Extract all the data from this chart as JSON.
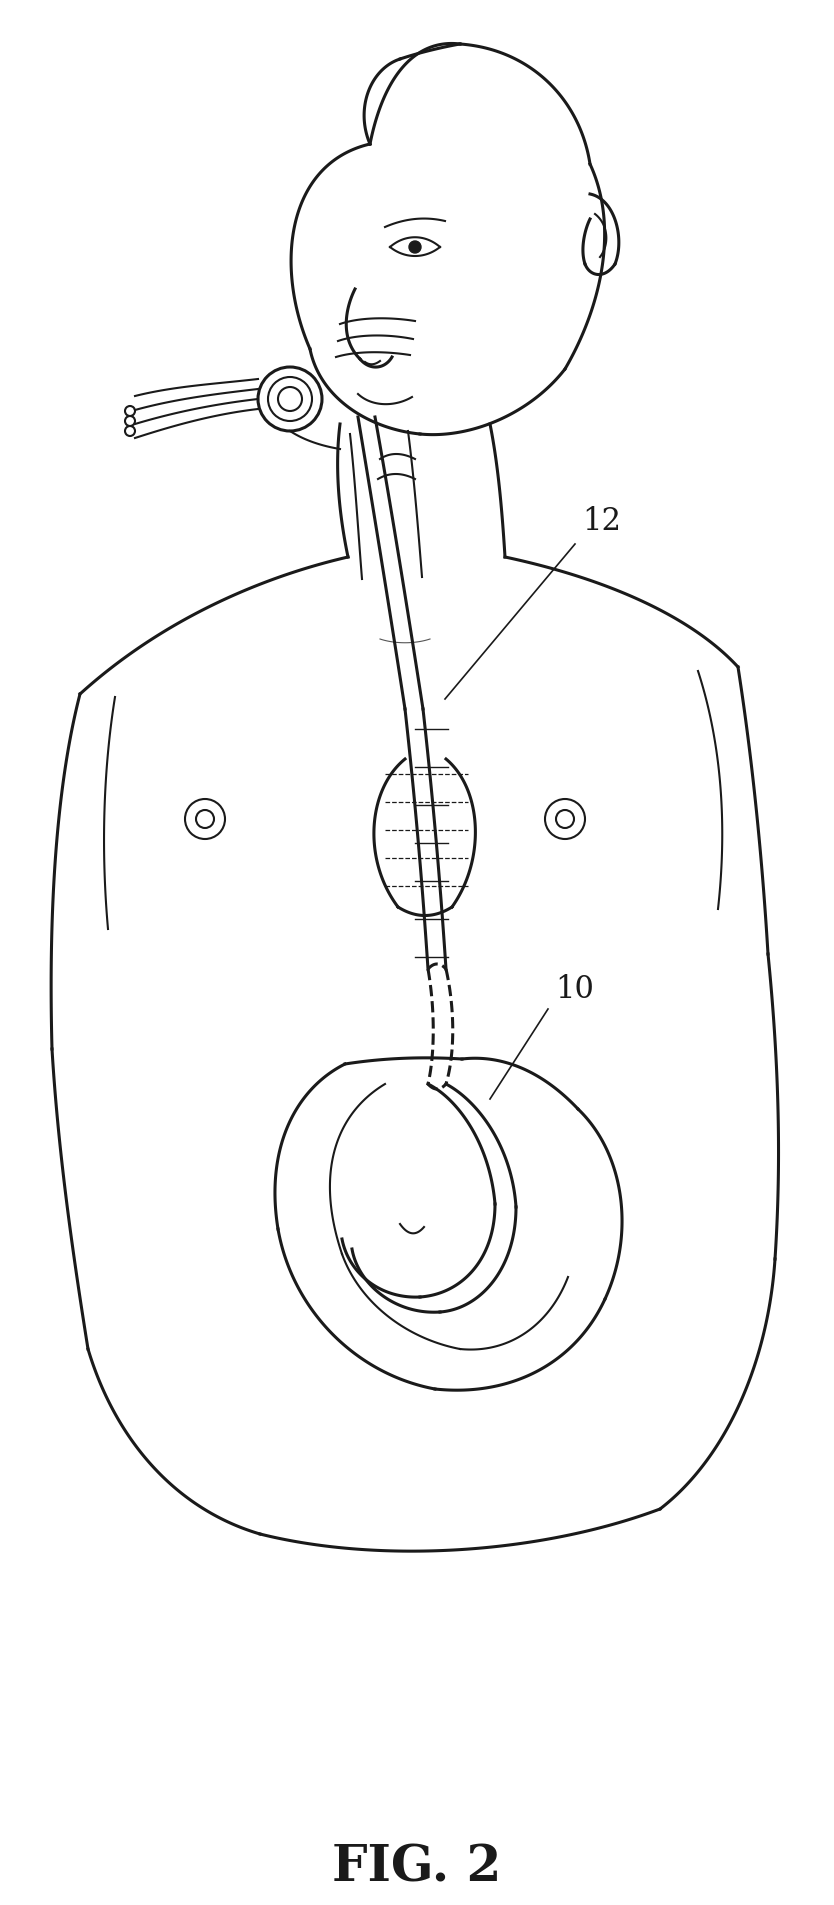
{
  "fig_label": "FIG. 2",
  "label_10": "10",
  "label_12": "12",
  "bg_color": "#ffffff",
  "line_color": "#1a1a1a",
  "line_width": 2.2,
  "fig_label_fontsize": 36,
  "annotation_fontsize": 22
}
